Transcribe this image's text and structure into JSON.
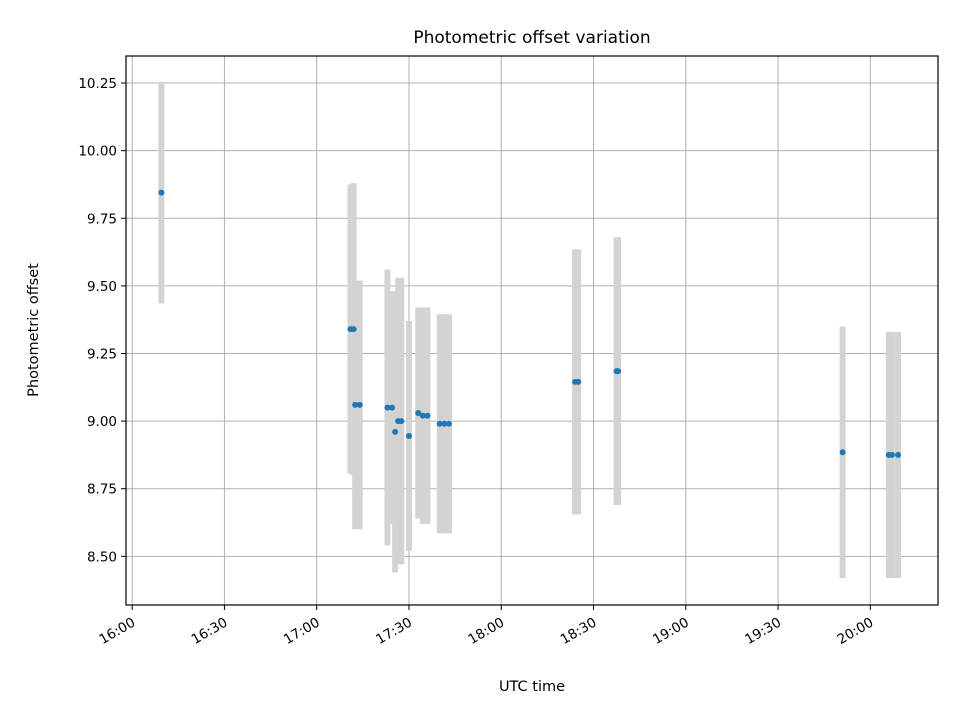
{
  "chart_data": {
    "type": "scatter",
    "title": "Photometric offset variation",
    "xlabel": "UTC time",
    "ylabel": "Photometric offset",
    "grid": true,
    "xlim": [
      "15:58",
      "20:22"
    ],
    "ylim": [
      8.32,
      10.35
    ],
    "x_ticks": [
      "16:00",
      "16:30",
      "17:00",
      "17:30",
      "18:00",
      "18:30",
      "19:00",
      "19:30",
      "20:00"
    ],
    "y_ticks": [
      8.5,
      8.75,
      9.0,
      9.25,
      9.5,
      9.75,
      10.0,
      10.25
    ],
    "y_tick_labels": [
      "8.50",
      "8.75",
      "9.00",
      "9.25",
      "9.50",
      "9.75",
      "10.00",
      "10.25"
    ],
    "marker_color": "#1f77b4",
    "errorbar_color": "#d3d3d3",
    "points": [
      {
        "time": "16:09:30",
        "y": 9.845,
        "err": 0.41
      },
      {
        "time": "17:11:00",
        "y": 9.34,
        "err": 0.535
      },
      {
        "time": "17:12:00",
        "y": 9.34,
        "err": 0.54
      },
      {
        "time": "17:12:30",
        "y": 9.06,
        "err": 0.46
      },
      {
        "time": "17:14:00",
        "y": 9.06,
        "err": 0.46
      },
      {
        "time": "17:23:00",
        "y": 9.05,
        "err": 0.51
      },
      {
        "time": "17:24:30",
        "y": 9.05,
        "err": 0.43
      },
      {
        "time": "17:25:30",
        "y": 8.96,
        "err": 0.52
      },
      {
        "time": "17:26:30",
        "y": 9.0,
        "err": 0.53
      },
      {
        "time": "17:27:30",
        "y": 9.0,
        "err": 0.53
      },
      {
        "time": "17:30:00",
        "y": 8.945,
        "err": 0.425
      },
      {
        "time": "17:33:00",
        "y": 9.03,
        "err": 0.39
      },
      {
        "time": "17:34:30",
        "y": 9.02,
        "err": 0.4
      },
      {
        "time": "17:36:00",
        "y": 9.02,
        "err": 0.4
      },
      {
        "time": "17:40:00",
        "y": 8.99,
        "err": 0.405
      },
      {
        "time": "17:41:30",
        "y": 8.99,
        "err": 0.405
      },
      {
        "time": "17:43:00",
        "y": 8.99,
        "err": 0.405
      },
      {
        "time": "18:24:00",
        "y": 9.145,
        "err": 0.49
      },
      {
        "time": "18:25:00",
        "y": 9.145,
        "err": 0.49
      },
      {
        "time": "18:37:30",
        "y": 9.185,
        "err": 0.495
      },
      {
        "time": "18:38:00",
        "y": 9.185,
        "err": 0.495
      },
      {
        "time": "19:51:00",
        "y": 8.885,
        "err": 0.465
      },
      {
        "time": "20:06:00",
        "y": 8.875,
        "err": 0.455
      },
      {
        "time": "20:07:00",
        "y": 8.875,
        "err": 0.455
      },
      {
        "time": "20:09:00",
        "y": 8.875,
        "err": 0.455
      }
    ]
  }
}
